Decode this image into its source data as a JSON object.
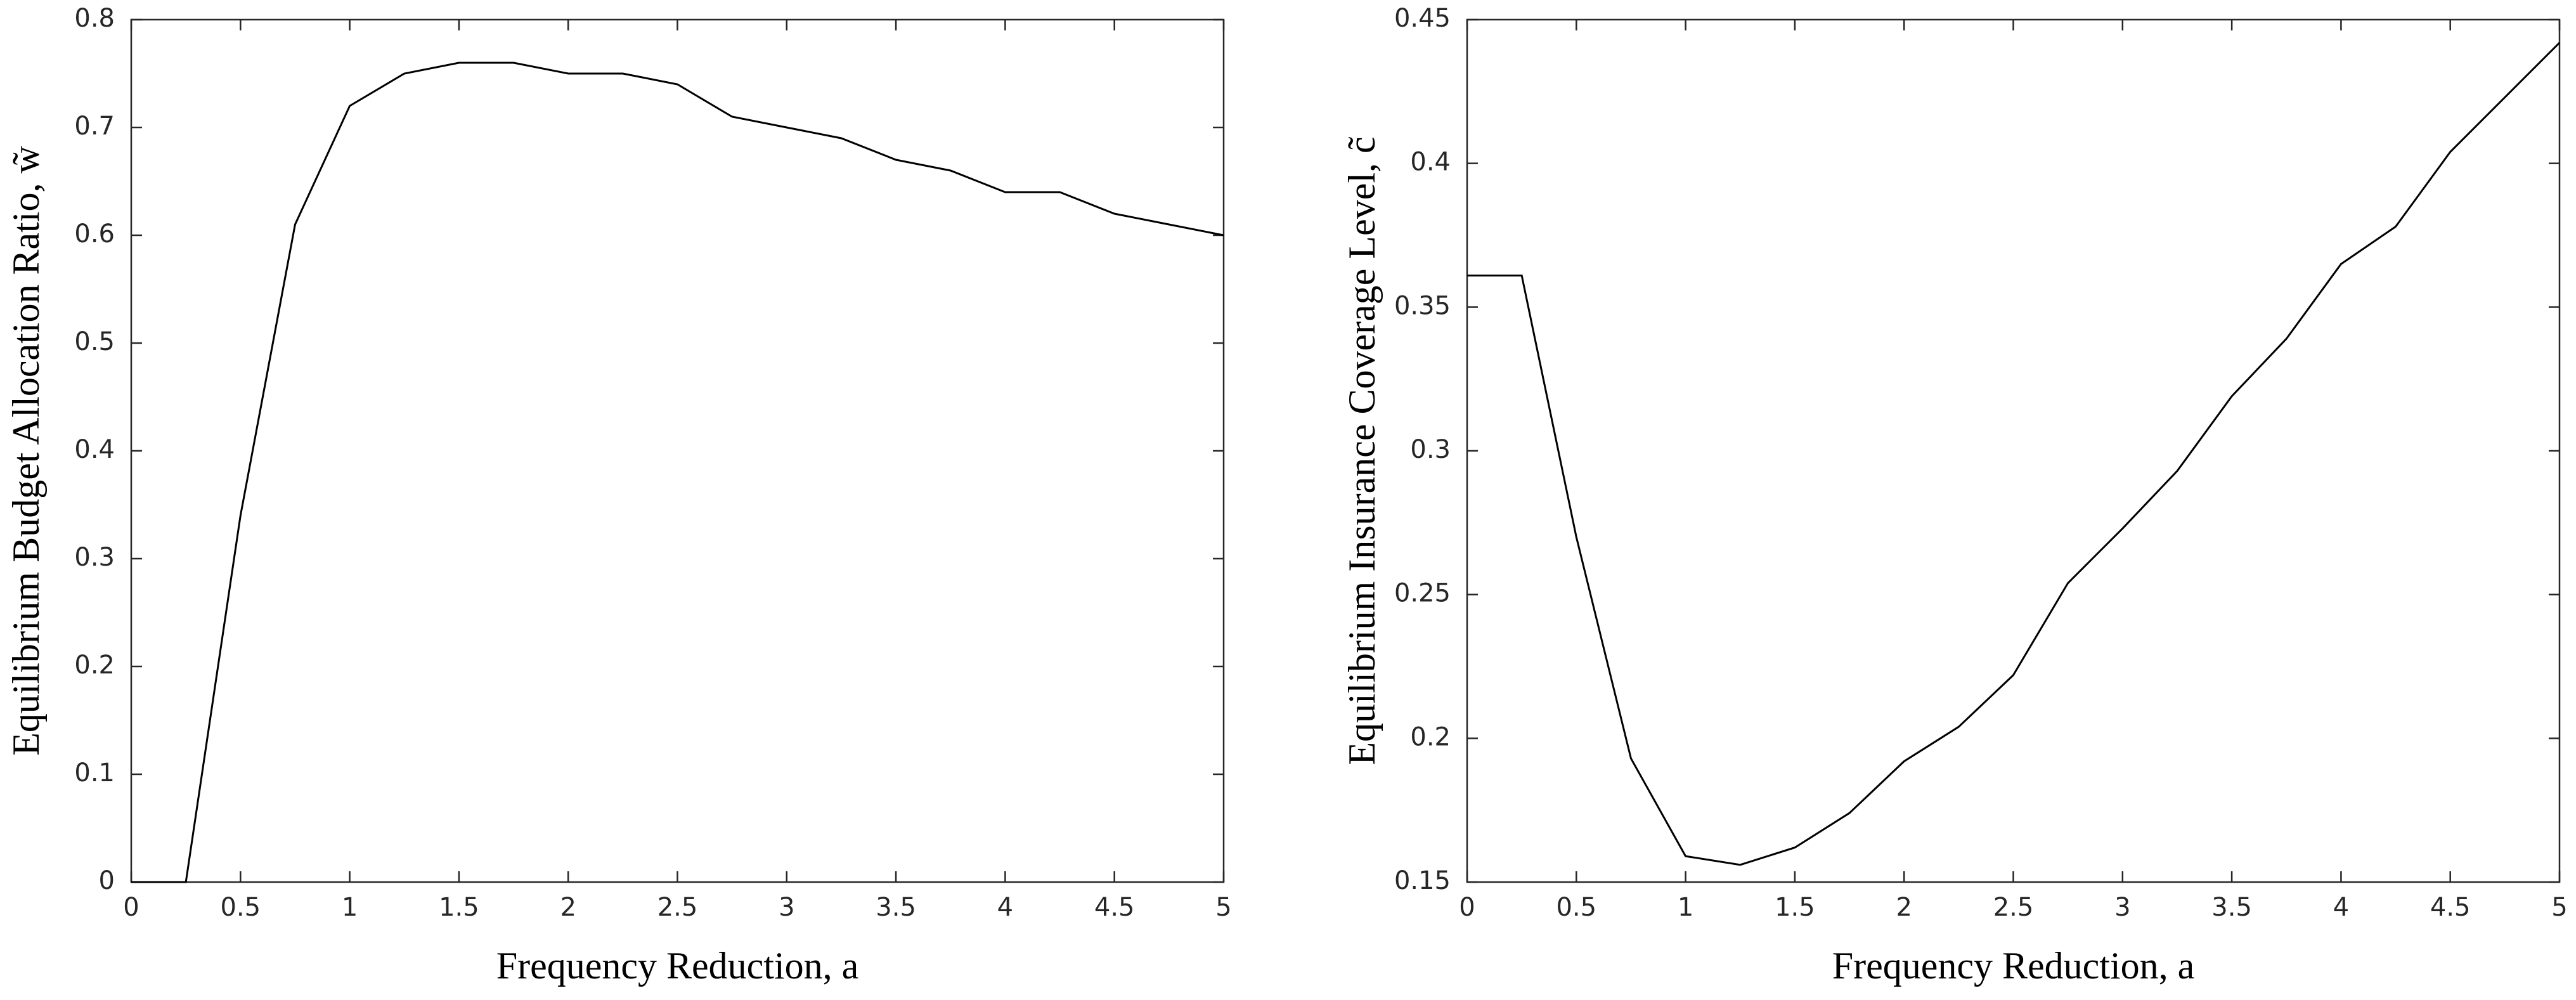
{
  "chart_data": [
    {
      "type": "line",
      "x": [
        0,
        0.25,
        0.5,
        0.75,
        1,
        1.25,
        1.5,
        1.75,
        2,
        2.25,
        2.5,
        2.75,
        3,
        3.25,
        3.5,
        3.75,
        4,
        4.25,
        4.5,
        4.75,
        5
      ],
      "values": [
        0,
        0,
        0.34,
        0.61,
        0.72,
        0.75,
        0.76,
        0.76,
        0.75,
        0.75,
        0.74,
        0.71,
        0.7,
        0.69,
        0.67,
        0.66,
        0.64,
        0.64,
        0.62,
        0.61,
        0.6
      ],
      "color": "#000000",
      "xlabel": "Frequency Reduction, a",
      "ylabel": "Equilibrium Budget Allocation Ratio, w̃",
      "xlim": [
        0,
        5
      ],
      "xticks": [
        0,
        0.5,
        1,
        1.5,
        2,
        2.5,
        3,
        3.5,
        4,
        4.5,
        5
      ],
      "ylim": [
        0,
        0.8
      ],
      "yticks": [
        0,
        0.1,
        0.2,
        0.3,
        0.4,
        0.5,
        0.6,
        0.7,
        0.8
      ]
    },
    {
      "type": "line",
      "x": [
        0,
        0.25,
        0.5,
        0.75,
        1,
        1.25,
        1.5,
        1.75,
        2,
        2.25,
        2.5,
        2.75,
        3,
        3.25,
        3.5,
        3.75,
        4,
        4.25,
        4.5,
        4.75,
        5
      ],
      "values": [
        0.361,
        0.361,
        0.27,
        0.193,
        0.159,
        0.156,
        0.162,
        0.174,
        0.192,
        0.204,
        0.222,
        0.254,
        0.273,
        0.293,
        0.319,
        0.339,
        0.365,
        0.378,
        0.404,
        0.423,
        0.442
      ],
      "color": "#000000",
      "xlabel": "Frequency Reduction, a",
      "ylabel": "Equilibrium Insurance Coverage Level, c̃",
      "xlim": [
        0,
        5
      ],
      "xticks": [
        0,
        0.5,
        1,
        1.5,
        2,
        2.5,
        3,
        3.5,
        4,
        4.5,
        5
      ],
      "ylim": [
        0.15,
        0.45
      ],
      "yticks": [
        0.15,
        0.2,
        0.25,
        0.3,
        0.35,
        0.4,
        0.45
      ]
    }
  ]
}
